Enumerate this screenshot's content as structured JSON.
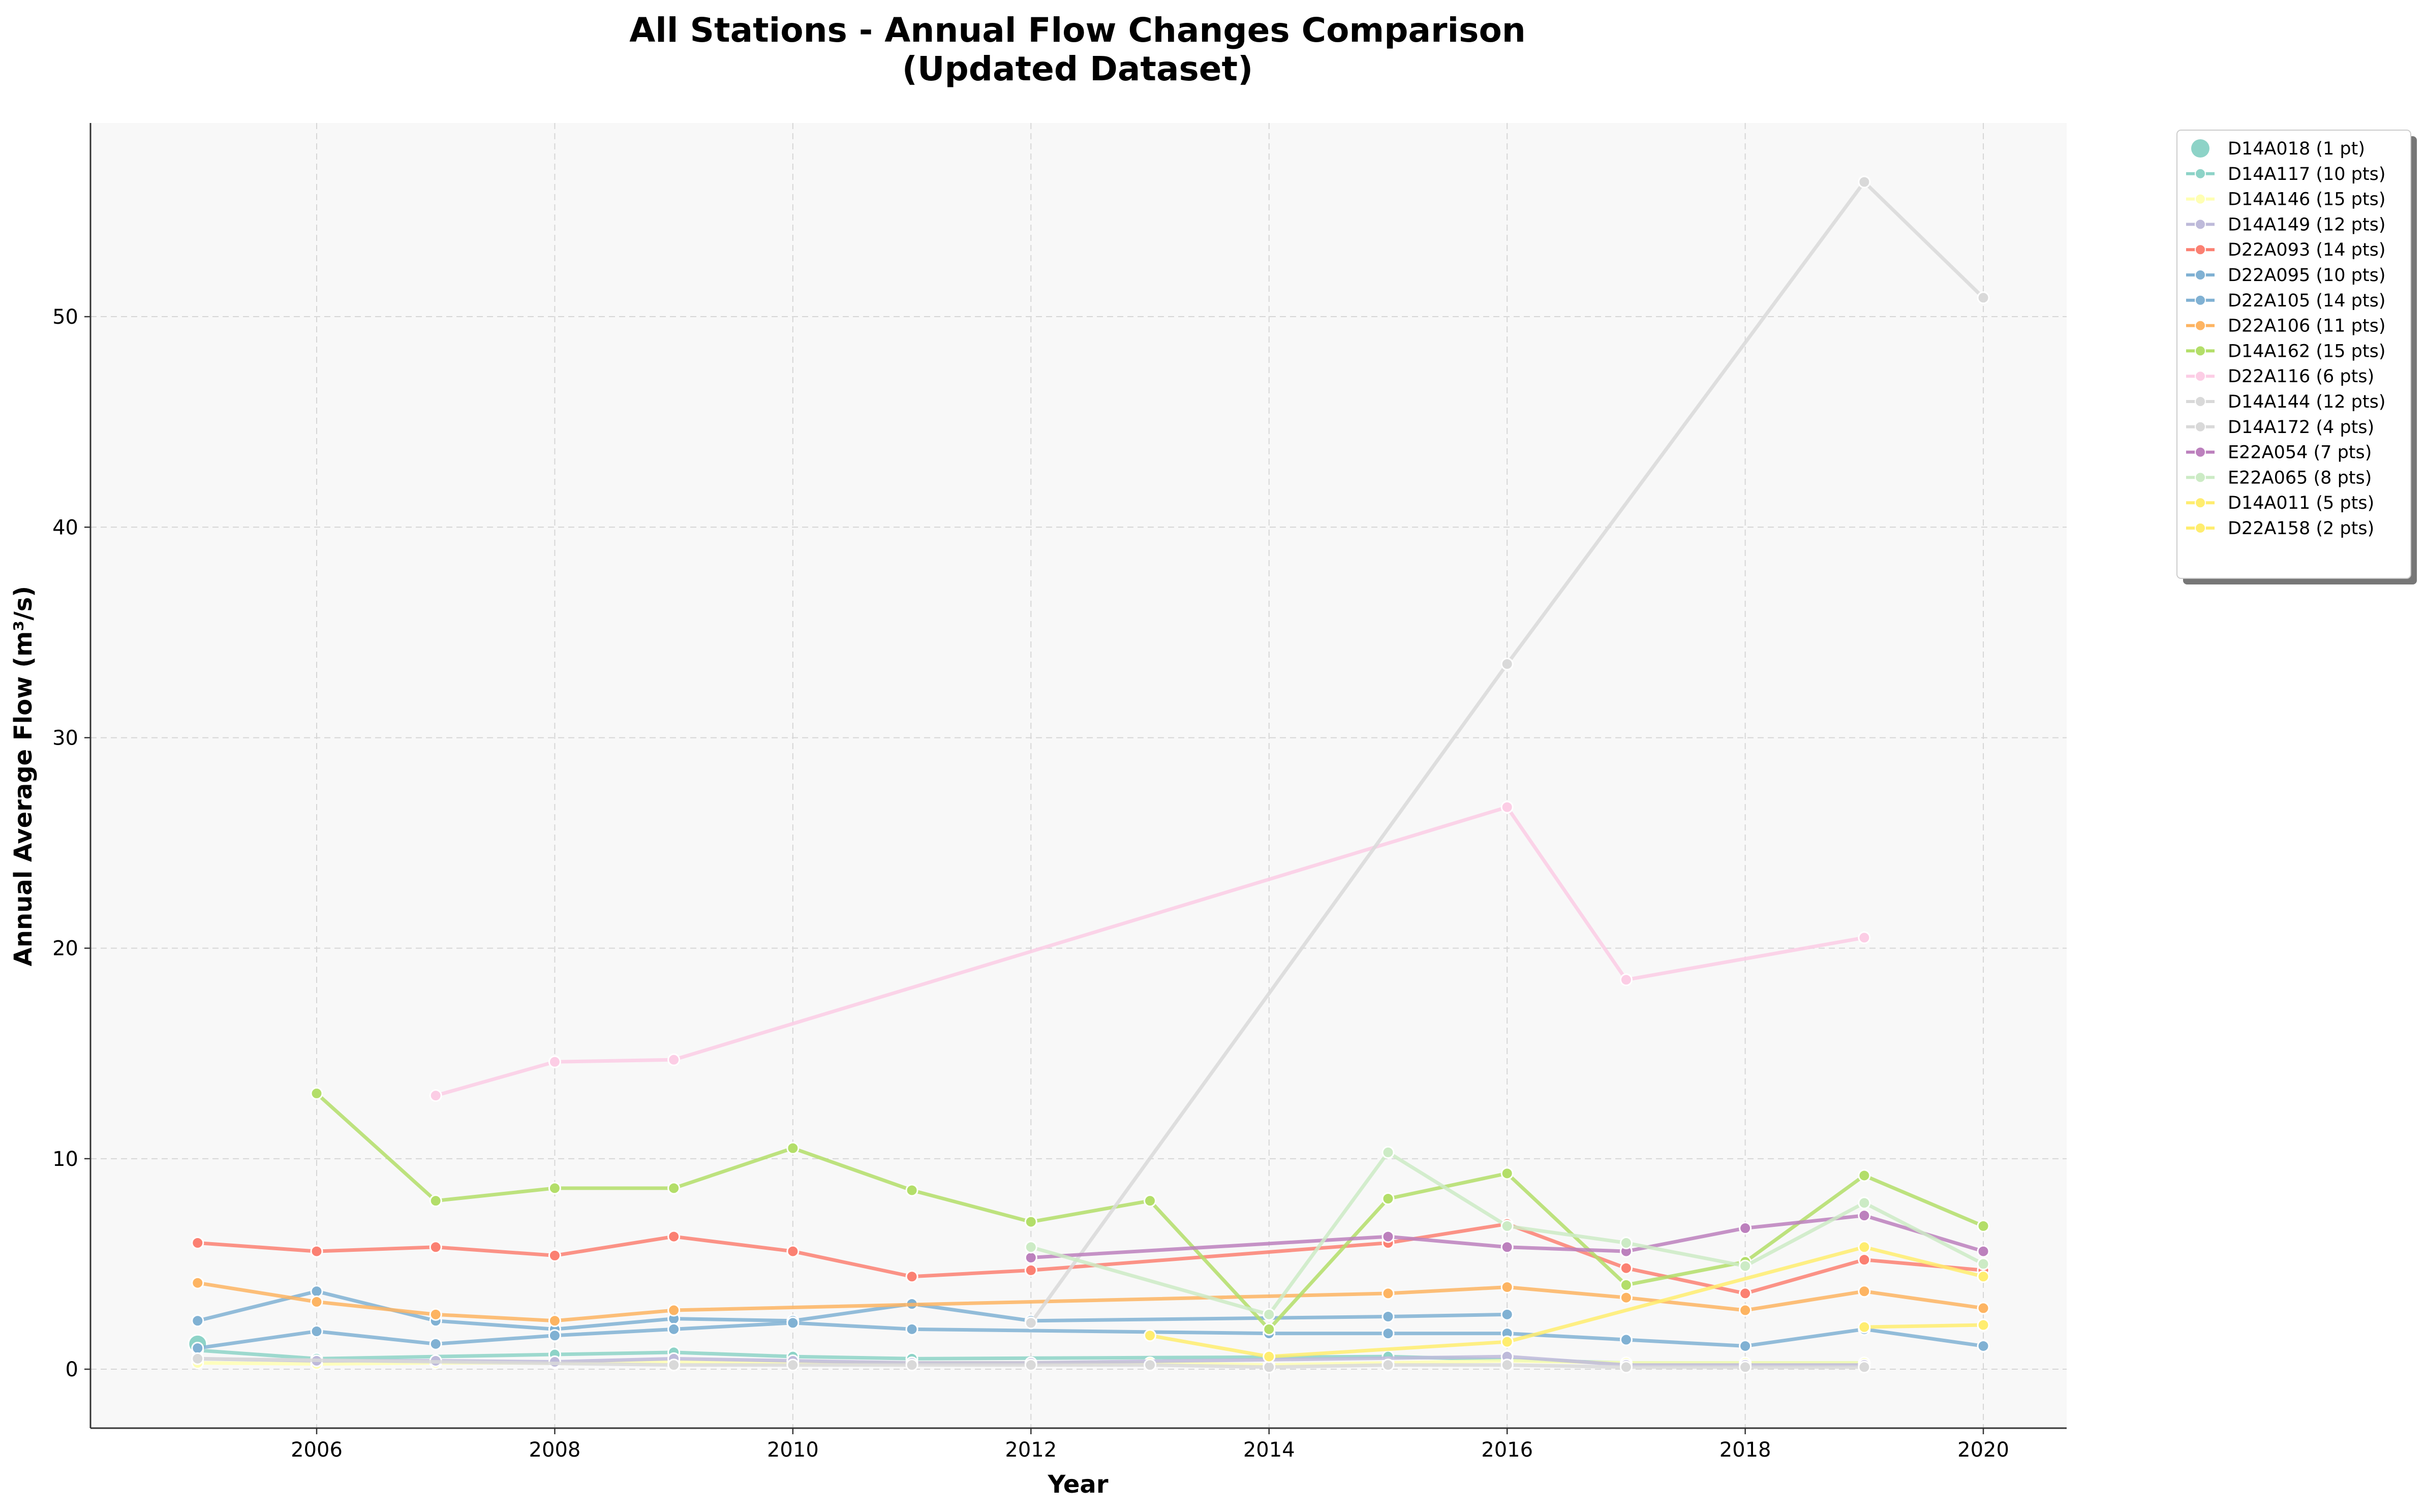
{
  "chart_data": {
    "type": "line",
    "title_line1": "All Stations - Annual Flow Changes Comparison",
    "title_line2": "(Updated Dataset)",
    "xlabel": "Year",
    "ylabel": "Annual Average Flow (m³/s)",
    "xlim": [
      2004.1,
      2020.7
    ],
    "ylim": [
      -2.8,
      59.2
    ],
    "xticks": [
      2006,
      2008,
      2010,
      2012,
      2014,
      2016,
      2018,
      2020
    ],
    "yticks": [
      0,
      10,
      20,
      30,
      40,
      50
    ],
    "grid": true,
    "legend_position": "outside-right",
    "series": [
      {
        "name": "D14A018 (1 pt)",
        "color": "#8dd3c7",
        "big_marker": true,
        "points": [
          [
            2005,
            1.2
          ]
        ]
      },
      {
        "name": "D14A117 (10 pts)",
        "color": "#8dd3c7",
        "points": [
          [
            2005,
            0.9
          ],
          [
            2006,
            0.5
          ],
          [
            2008,
            0.7
          ],
          [
            2009,
            0.8
          ],
          [
            2010,
            0.6
          ],
          [
            2011,
            0.5
          ],
          [
            2015,
            0.6
          ],
          [
            2017,
            0.3
          ],
          [
            2018,
            0.3
          ],
          [
            2019,
            0.3
          ]
        ]
      },
      {
        "name": "D14A146 (15 pts)",
        "color": "#ffffb3",
        "points": [
          [
            2005,
            0.3
          ],
          [
            2006,
            0.25
          ],
          [
            2007,
            0.3
          ],
          [
            2008,
            0.3
          ],
          [
            2009,
            0.35
          ],
          [
            2010,
            0.3
          ],
          [
            2011,
            0.3
          ],
          [
            2012,
            0.3
          ],
          [
            2013,
            0.3
          ],
          [
            2014,
            0.2
          ],
          [
            2015,
            0.3
          ],
          [
            2016,
            0.4
          ],
          [
            2017,
            0.3
          ],
          [
            2018,
            0.3
          ],
          [
            2019,
            0.3
          ]
        ]
      },
      {
        "name": "D14A149 (12 pts)",
        "color": "#bebada",
        "points": [
          [
            2005,
            0.5
          ],
          [
            2006,
            0.4
          ],
          [
            2007,
            0.4
          ],
          [
            2008,
            0.35
          ],
          [
            2009,
            0.5
          ],
          [
            2010,
            0.4
          ],
          [
            2011,
            0.3
          ],
          [
            2012,
            0.3
          ],
          [
            2016,
            0.6
          ],
          [
            2017,
            0.2
          ],
          [
            2018,
            0.2
          ],
          [
            2019,
            0.2
          ]
        ]
      },
      {
        "name": "D22A093 (14 pts)",
        "color": "#fb8072",
        "points": [
          [
            2005,
            6.0
          ],
          [
            2006,
            5.6
          ],
          [
            2007,
            5.8
          ],
          [
            2008,
            5.4
          ],
          [
            2009,
            6.3
          ],
          [
            2010,
            5.6
          ],
          [
            2011,
            4.4
          ],
          [
            2012,
            4.7
          ],
          [
            2015,
            6.0
          ],
          [
            2016,
            6.9
          ],
          [
            2017,
            4.8
          ],
          [
            2018,
            3.6
          ],
          [
            2019,
            5.2
          ],
          [
            2020,
            4.7
          ]
        ]
      },
      {
        "name": "D22A095 (10 pts)",
        "color": "#80b1d3",
        "points": [
          [
            2005,
            2.3
          ],
          [
            2006,
            3.7
          ],
          [
            2007,
            2.3
          ],
          [
            2008,
            1.9
          ],
          [
            2009,
            2.4
          ],
          [
            2010,
            2.3
          ],
          [
            2011,
            3.1
          ],
          [
            2012,
            2.3
          ],
          [
            2015,
            2.5
          ],
          [
            2016,
            2.6
          ]
        ]
      },
      {
        "name": "D22A105 (14 pts)",
        "color": "#80b1d3",
        "points": [
          [
            2005,
            1.0
          ],
          [
            2006,
            1.8
          ],
          [
            2007,
            1.2
          ],
          [
            2008,
            1.6
          ],
          [
            2010,
            2.2
          ],
          [
            2011,
            1.9
          ],
          [
            2014,
            1.7
          ],
          [
            2015,
            1.7
          ],
          [
            2016,
            1.7
          ],
          [
            2017,
            1.4
          ],
          [
            2018,
            1.1
          ],
          [
            2019,
            1.9
          ],
          [
            2020,
            1.1
          ],
          [
            2009,
            1.9
          ]
        ]
      },
      {
        "name": "D22A106 (11 pts)",
        "color": "#fdb462",
        "points": [
          [
            2005,
            4.1
          ],
          [
            2006,
            3.2
          ],
          [
            2007,
            2.6
          ],
          [
            2008,
            2.3
          ],
          [
            2009,
            2.8
          ],
          [
            2015,
            3.6
          ],
          [
            2016,
            3.9
          ],
          [
            2017,
            3.4
          ],
          [
            2018,
            2.8
          ],
          [
            2019,
            3.7
          ],
          [
            2020,
            2.9
          ]
        ]
      },
      {
        "name": "D14A162 (15 pts)",
        "color": "#b3de69",
        "points": [
          [
            2006,
            13.1
          ],
          [
            2007,
            8.0
          ],
          [
            2008,
            8.6
          ],
          [
            2009,
            8.6
          ],
          [
            2010,
            10.5
          ],
          [
            2011,
            8.5
          ],
          [
            2012,
            7.0
          ],
          [
            2013,
            8.0
          ],
          [
            2014,
            1.9
          ],
          [
            2015,
            8.1
          ],
          [
            2016,
            9.3
          ],
          [
            2017,
            4.0
          ],
          [
            2018,
            5.1
          ],
          [
            2019,
            9.2
          ],
          [
            2020,
            6.8
          ]
        ]
      },
      {
        "name": "D22A116 (6 pts)",
        "color": "#fccde5",
        "points": [
          [
            2007,
            13.0
          ],
          [
            2008,
            14.6
          ],
          [
            2009,
            14.7
          ],
          [
            2016,
            26.7
          ],
          [
            2017,
            18.5
          ],
          [
            2019,
            20.5
          ]
        ]
      },
      {
        "name": "D14A144 (12 pts)",
        "color": "#d9d9d9",
        "points": [
          [
            2005,
            0.5
          ],
          [
            2009,
            0.2
          ],
          [
            2010,
            0.2
          ],
          [
            2011,
            0.2
          ],
          [
            2012,
            0.2
          ],
          [
            2013,
            0.2
          ],
          [
            2014,
            0.1
          ],
          [
            2015,
            0.2
          ],
          [
            2016,
            0.2
          ],
          [
            2017,
            0.1
          ],
          [
            2018,
            0.1
          ],
          [
            2019,
            0.1
          ]
        ]
      },
      {
        "name": "D14A172 (4 pts)",
        "color": "#d9d9d9",
        "points": [
          [
            2012,
            2.2
          ],
          [
            2016,
            33.5
          ],
          [
            2019,
            56.4
          ],
          [
            2020,
            50.9
          ]
        ]
      },
      {
        "name": "E22A054 (7 pts)",
        "color": "#bc80bd",
        "points": [
          [
            2012,
            5.3
          ],
          [
            2015,
            6.3
          ],
          [
            2016,
            5.8
          ],
          [
            2017,
            5.6
          ],
          [
            2018,
            6.7
          ],
          [
            2019,
            7.3
          ],
          [
            2020,
            5.6
          ]
        ]
      },
      {
        "name": "E22A065 (8 pts)",
        "color": "#ccebc5",
        "points": [
          [
            2012,
            5.8
          ],
          [
            2014,
            2.6
          ],
          [
            2015,
            10.3
          ],
          [
            2016,
            6.8
          ],
          [
            2017,
            6.0
          ],
          [
            2018,
            4.9
          ],
          [
            2019,
            7.9
          ],
          [
            2020,
            5.0
          ]
        ]
      },
      {
        "name": "D14A011 (5 pts)",
        "color": "#ffed6f",
        "points": [
          [
            2013,
            1.6
          ],
          [
            2014,
            0.6
          ],
          [
            2016,
            1.3
          ],
          [
            2019,
            5.8
          ],
          [
            2020,
            4.4
          ]
        ]
      },
      {
        "name": "D22A158 (2 pts)",
        "color": "#ffed6f",
        "points": [
          [
            2019,
            2.0
          ],
          [
            2020,
            2.1
          ]
        ]
      }
    ]
  }
}
